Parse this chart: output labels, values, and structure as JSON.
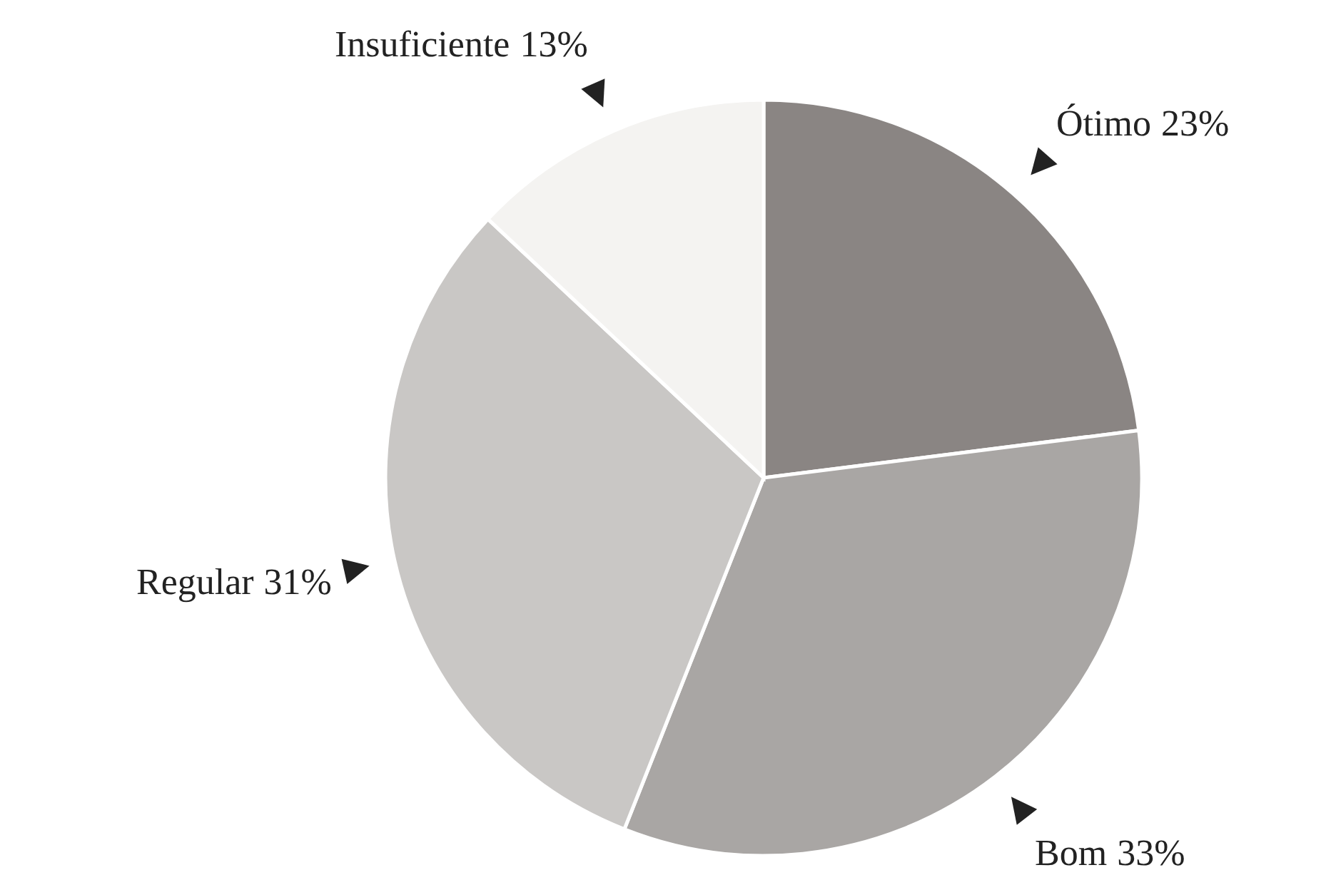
{
  "chart_data": {
    "type": "pie",
    "categories": [
      "Ótimo",
      "Bom",
      "Regular",
      "Insuficiente"
    ],
    "values": [
      23,
      33,
      31,
      13
    ],
    "colors": [
      "#8a8583",
      "#a9a6a4",
      "#c9c7c5",
      "#f4f3f1"
    ],
    "value_labels": [
      "23%",
      "33%",
      "31%",
      "13%"
    ]
  }
}
